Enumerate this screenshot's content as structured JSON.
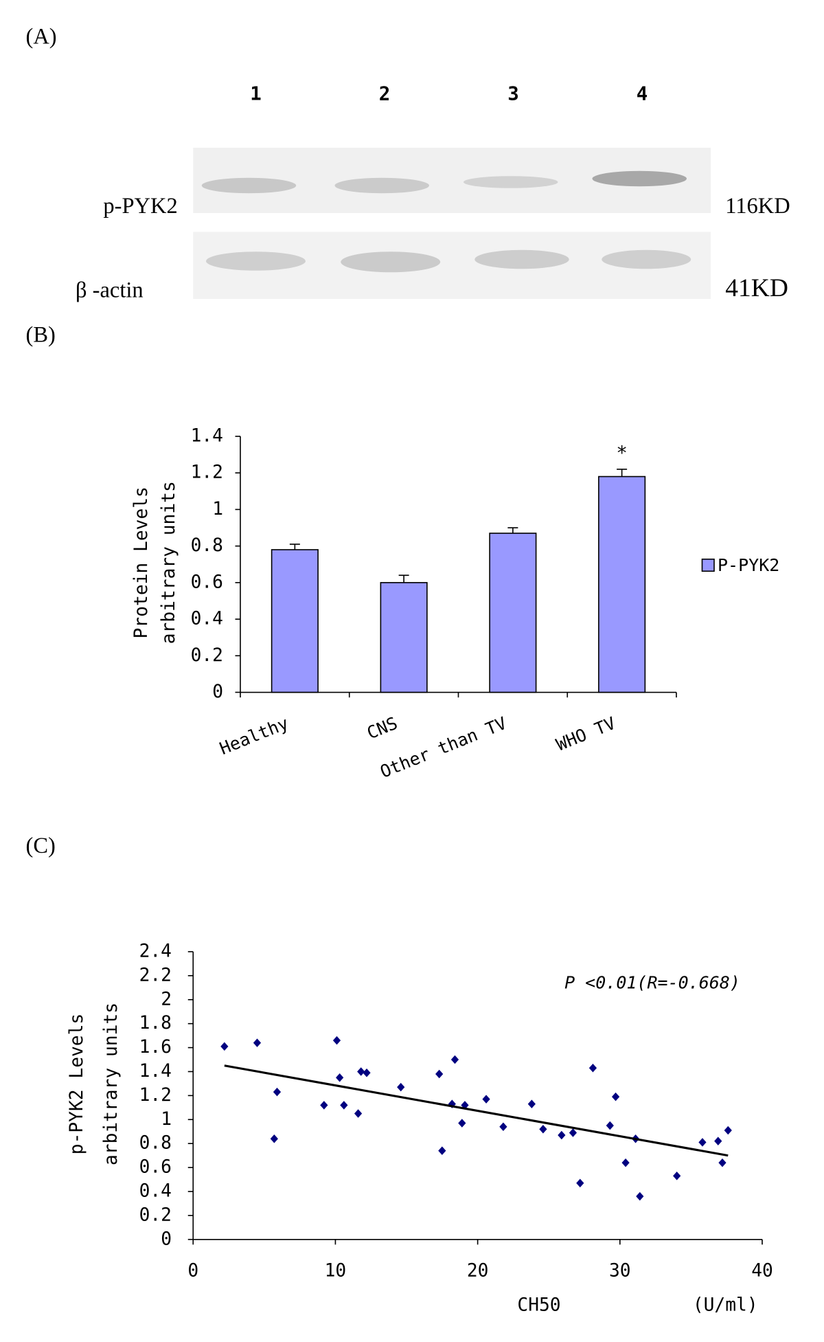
{
  "panel_labels": [
    "(A)",
    "(B)",
    "(C)"
  ],
  "blot": {
    "lanes": [
      "1",
      "2",
      "3",
      "4"
    ],
    "rows": [
      {
        "label": "p-PYK2",
        "size": "116KD"
      },
      {
        "label": "β -actin",
        "size": "41KD"
      }
    ]
  },
  "chart_data": [
    {
      "type": "bar",
      "y_label": [
        "Protein Levels",
        "arbitrary units"
      ],
      "categories": [
        "Healthy",
        "CNS",
        "Other than TV",
        "WHO TV"
      ],
      "series": [
        {
          "name": "P-PYK2",
          "color": "#9999ff",
          "values": [
            0.78,
            0.6,
            0.87,
            1.18
          ],
          "errors": [
            0.03,
            0.04,
            0.03,
            0.04
          ]
        }
      ],
      "annotations": [
        {
          "text": "*",
          "category": "WHO TV"
        }
      ],
      "ylim": [
        0,
        1.4
      ],
      "yticks": [
        0,
        0.2,
        0.4,
        0.6,
        0.8,
        1,
        1.2,
        1.4
      ],
      "legend": "right"
    },
    {
      "type": "scatter",
      "y_label": [
        "p-PYK2 Levels",
        "arbitrary units"
      ],
      "x_label": "CH50",
      "x_unit": "(U/ml)",
      "annotation": "P <0.01(R=-0.668)",
      "color": "#000080",
      "x": [
        2.2,
        4.5,
        5.9,
        5.7,
        9.2,
        10.1,
        10.3,
        10.6,
        11.6,
        11.8,
        12.2,
        14.6,
        17.3,
        17.5,
        18.4,
        18.2,
        18.9,
        19.1,
        20.6,
        21.8,
        23.8,
        24.6,
        25.9,
        26.7,
        27.2,
        28.1,
        29.3,
        29.7,
        30.4,
        31.1,
        31.4,
        34.0,
        35.8,
        36.9,
        37.2,
        37.6
      ],
      "y": [
        1.61,
        1.64,
        1.23,
        0.84,
        1.12,
        1.66,
        1.35,
        1.12,
        1.05,
        1.4,
        1.39,
        1.27,
        1.38,
        0.74,
        1.5,
        1.13,
        0.97,
        1.12,
        1.17,
        0.94,
        1.13,
        0.92,
        0.87,
        0.89,
        0.47,
        1.43,
        0.95,
        1.19,
        0.64,
        0.84,
        0.36,
        0.53,
        0.81,
        0.82,
        0.64,
        0.91
      ],
      "trendline": {
        "x": [
          2.2,
          37.6
        ],
        "y": [
          1.45,
          0.7
        ]
      },
      "xlim": [
        0,
        40
      ],
      "xticks": [
        0,
        10,
        20,
        30,
        40
      ],
      "ylim": [
        0,
        2.4
      ],
      "yticks": [
        0,
        0.2,
        0.4,
        0.6,
        0.8,
        1,
        1.2,
        1.4,
        1.6,
        1.8,
        2,
        2.2,
        2.4
      ]
    }
  ]
}
